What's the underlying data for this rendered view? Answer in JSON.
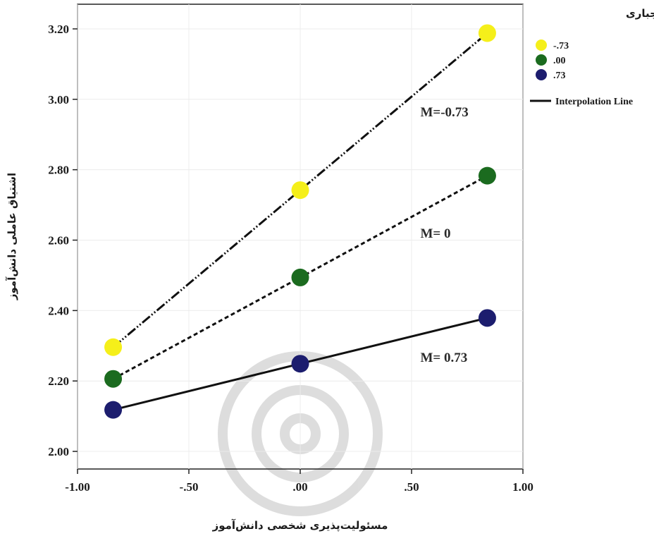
{
  "chart_data": {
    "type": "line",
    "xlabel": "مسئولیت‌پذیری شخصی دانش‌آموز",
    "ylabel": "اشتیاق عاملی دانش‌آموز",
    "xlim": [
      -1.0,
      1.0
    ],
    "ylim": [
      1.95,
      3.27
    ],
    "xticks": [
      -1.0,
      -0.5,
      0.0,
      0.5,
      1.0
    ],
    "xtick_labels": [
      "-1.00",
      "-.50",
      ".00",
      ".50",
      "1.00"
    ],
    "yticks": [
      2.0,
      2.2,
      2.4,
      2.6,
      2.8,
      3.0,
      3.2
    ],
    "ytick_labels": [
      "2.00",
      "2.20",
      "2.40",
      "2.60",
      "2.80",
      "3.00",
      "3.20"
    ],
    "grid": true,
    "legend_position": "right",
    "legend_title": "M راهبرد اجباری",
    "legend_line_label": "Interpolation Line",
    "series": [
      {
        "name": "-.73",
        "color": "#f5ef1a",
        "line_style": "dash-dot-dot",
        "annotation": "M=-0.73",
        "x": [
          -0.84,
          0.0,
          0.84
        ],
        "y": [
          2.296,
          2.742,
          3.188
        ]
      },
      {
        "name": ".00",
        "color": "#1b6b1f",
        "line_style": "dashed",
        "annotation": "M= 0",
        "x": [
          -0.84,
          0.0,
          0.84
        ],
        "y": [
          2.206,
          2.494,
          2.783
        ]
      },
      {
        "name": ".73",
        "color": "#1c1d6e",
        "line_style": "solid",
        "annotation": "M= 0.73",
        "x": [
          -0.84,
          0.0,
          0.84
        ],
        "y": [
          2.118,
          2.249,
          2.379
        ]
      }
    ]
  }
}
